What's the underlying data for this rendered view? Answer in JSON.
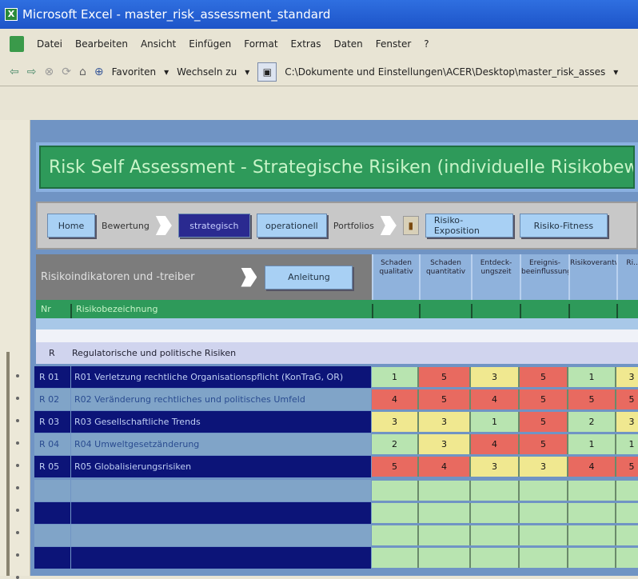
{
  "window": {
    "title": "Microsoft Excel - master_risk_assessment_standard"
  },
  "menu": [
    "Datei",
    "Bearbeiten",
    "Ansicht",
    "Einfügen",
    "Format",
    "Extras",
    "Daten",
    "Fenster",
    "?"
  ],
  "addressbar": {
    "favorites": "Favoriten",
    "goto": "Wechseln zu",
    "path": "C:\\Dokumente und Einstellungen\\ACER\\Desktop\\master_risk_asses"
  },
  "sheet": {
    "title": "Risk Self Assessment  - Strategische Risiken (individuelle Risikobew",
    "nav": {
      "home": "Home",
      "bewertung": "Bewertung",
      "strategisch": "strategisch",
      "operationell": "operationell",
      "portfolios": "Portfolios",
      "exposition": "Risiko-Exposition",
      "fitness": "Risiko-Fitness"
    },
    "header": {
      "label": "Risikoindikatoren und -treiber",
      "anleitung": "Anleitung",
      "nr": "Nr",
      "bezeichnung": "Risikobezeichnung"
    },
    "columns": [
      "Schaden qualitativ",
      "Schaden quantitativ",
      "Entdeck-ungszeit",
      "Ereignis-beeinflussung",
      "Risikoverantwortung",
      "Ri..."
    ],
    "group": {
      "code": "R",
      "name": "Regulatorische und politische Risiken"
    },
    "rows": [
      {
        "nr": "R 01",
        "name": "R01 Verletzung rechtliche Organisationspflicht (KonTraG, OR)",
        "values": [
          1,
          5,
          3,
          5,
          1,
          3
        ]
      },
      {
        "nr": "R 02",
        "name": "R02 Veränderung rechtliches und politisches Umfeld",
        "values": [
          4,
          5,
          4,
          5,
          5,
          5
        ]
      },
      {
        "nr": "R 03",
        "name": "R03 Gesellschaftliche Trends",
        "values": [
          3,
          3,
          1,
          5,
          2,
          3
        ]
      },
      {
        "nr": "R 04",
        "name": "R04 Umweltgesetzänderung",
        "values": [
          2,
          3,
          4,
          5,
          1,
          1
        ]
      },
      {
        "nr": "R 05",
        "name": "R05 Globalisierungsrisiken",
        "values": [
          5,
          4,
          3,
          3,
          4,
          5
        ]
      },
      {
        "nr": "",
        "name": "",
        "values": []
      },
      {
        "nr": "",
        "name": "",
        "values": []
      },
      {
        "nr": "",
        "name": "",
        "values": []
      },
      {
        "nr": "",
        "name": "",
        "values": []
      }
    ]
  },
  "colors": {
    "low": "#b8e4b0",
    "mid": "#f0e890",
    "high": "#e86a60",
    "empty": "#b8e4b0"
  }
}
